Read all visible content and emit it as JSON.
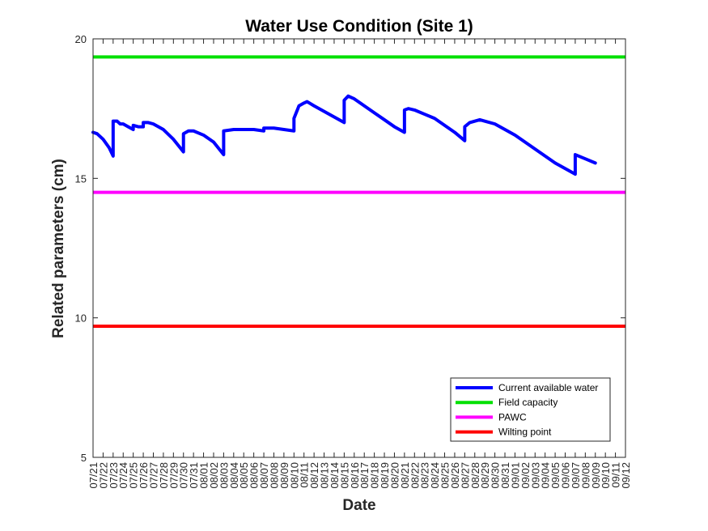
{
  "chart_data": {
    "type": "line",
    "title": "Water Use Condition (Site 1)",
    "xlabel": "Date",
    "ylabel": "Related parameters (cm)",
    "ylim": [
      5,
      20
    ],
    "yticks": [
      5,
      10,
      15,
      20
    ],
    "xticks": [
      "07/21",
      "07/22",
      "07/23",
      "07/24",
      "07/25",
      "07/26",
      "07/27",
      "07/28",
      "07/29",
      "07/30",
      "07/31",
      "08/01",
      "08/02",
      "08/03",
      "08/04",
      "08/05",
      "08/06",
      "08/07",
      "08/08",
      "08/09",
      "08/10",
      "08/11",
      "08/12",
      "08/13",
      "08/14",
      "08/15",
      "08/16",
      "08/17",
      "08/18",
      "08/19",
      "08/20",
      "08/21",
      "08/22",
      "08/23",
      "08/24",
      "08/25",
      "08/26",
      "08/27",
      "08/28",
      "08/29",
      "08/30",
      "08/31",
      "09/01",
      "09/02",
      "09/03",
      "09/04",
      "09/05",
      "09/06",
      "09/07",
      "09/08",
      "09/09",
      "09/10",
      "09/11",
      "09/12"
    ],
    "grid": false,
    "legend_position": "bottom-right",
    "series": [
      {
        "name": "Current available water",
        "color": "#0000ff",
        "points": [
          [
            "07/21",
            16.65
          ],
          [
            "07/21.4",
            16.6
          ],
          [
            "07/22",
            16.4
          ],
          [
            "07/22.6",
            16.1
          ],
          [
            "07/23",
            15.8
          ],
          [
            "07/23",
            17.05
          ],
          [
            "07/23.4",
            17.05
          ],
          [
            "07/23.7",
            16.95
          ],
          [
            "07/24",
            16.95
          ],
          [
            "07/24.5",
            16.85
          ],
          [
            "07/25",
            16.75
          ],
          [
            "07/25",
            16.9
          ],
          [
            "07/25.5",
            16.85
          ],
          [
            "07/26",
            16.85
          ],
          [
            "07/26",
            17.0
          ],
          [
            "07/26.5",
            17.0
          ],
          [
            "07/27",
            16.95
          ],
          [
            "07/28",
            16.75
          ],
          [
            "07/29",
            16.4
          ],
          [
            "07/30",
            15.95
          ],
          [
            "07/30",
            16.6
          ],
          [
            "07/30.5",
            16.7
          ],
          [
            "07/31",
            16.7
          ],
          [
            "08/01",
            16.55
          ],
          [
            "08/02",
            16.3
          ],
          [
            "08/03",
            15.85
          ],
          [
            "08/03",
            16.7
          ],
          [
            "08/04",
            16.75
          ],
          [
            "08/05",
            16.75
          ],
          [
            "08/06",
            16.75
          ],
          [
            "08/07",
            16.7
          ],
          [
            "08/07",
            16.8
          ],
          [
            "08/08",
            16.8
          ],
          [
            "08/09",
            16.75
          ],
          [
            "08/10",
            16.7
          ],
          [
            "08/10",
            17.15
          ],
          [
            "08/10.5",
            17.6
          ],
          [
            "08/11",
            17.7
          ],
          [
            "08/11.3",
            17.75
          ],
          [
            "08/12",
            17.6
          ],
          [
            "08/13",
            17.4
          ],
          [
            "08/14",
            17.2
          ],
          [
            "08/15",
            17.0
          ],
          [
            "08/15",
            17.8
          ],
          [
            "08/15.4",
            17.95
          ],
          [
            "08/16",
            17.85
          ],
          [
            "08/17",
            17.6
          ],
          [
            "08/18",
            17.35
          ],
          [
            "08/19",
            17.1
          ],
          [
            "08/20",
            16.85
          ],
          [
            "08/21",
            16.65
          ],
          [
            "08/21",
            17.45
          ],
          [
            "08/21.4",
            17.5
          ],
          [
            "08/22",
            17.45
          ],
          [
            "08/23",
            17.3
          ],
          [
            "08/24",
            17.15
          ],
          [
            "08/25",
            16.9
          ],
          [
            "08/26",
            16.65
          ],
          [
            "08/27",
            16.35
          ],
          [
            "08/27",
            16.85
          ],
          [
            "08/27.5",
            17.0
          ],
          [
            "08/28",
            17.05
          ],
          [
            "08/28.5",
            17.1
          ],
          [
            "08/29",
            17.05
          ],
          [
            "08/30",
            16.95
          ],
          [
            "08/31",
            16.75
          ],
          [
            "09/01",
            16.55
          ],
          [
            "09/02",
            16.3
          ],
          [
            "09/03",
            16.05
          ],
          [
            "09/04",
            15.8
          ],
          [
            "09/05",
            15.55
          ],
          [
            "09/06",
            15.35
          ],
          [
            "09/07",
            15.15
          ],
          [
            "09/07",
            15.85
          ],
          [
            "09/08",
            15.7
          ],
          [
            "09/09",
            15.55
          ]
        ]
      },
      {
        "name": "Field capacity",
        "color": "#00e000",
        "constant": 19.35
      },
      {
        "name": "PAWC",
        "color": "#ff00ff",
        "constant": 14.5
      },
      {
        "name": "Wilting point",
        "color": "#ff0000",
        "constant": 9.7
      }
    ]
  }
}
